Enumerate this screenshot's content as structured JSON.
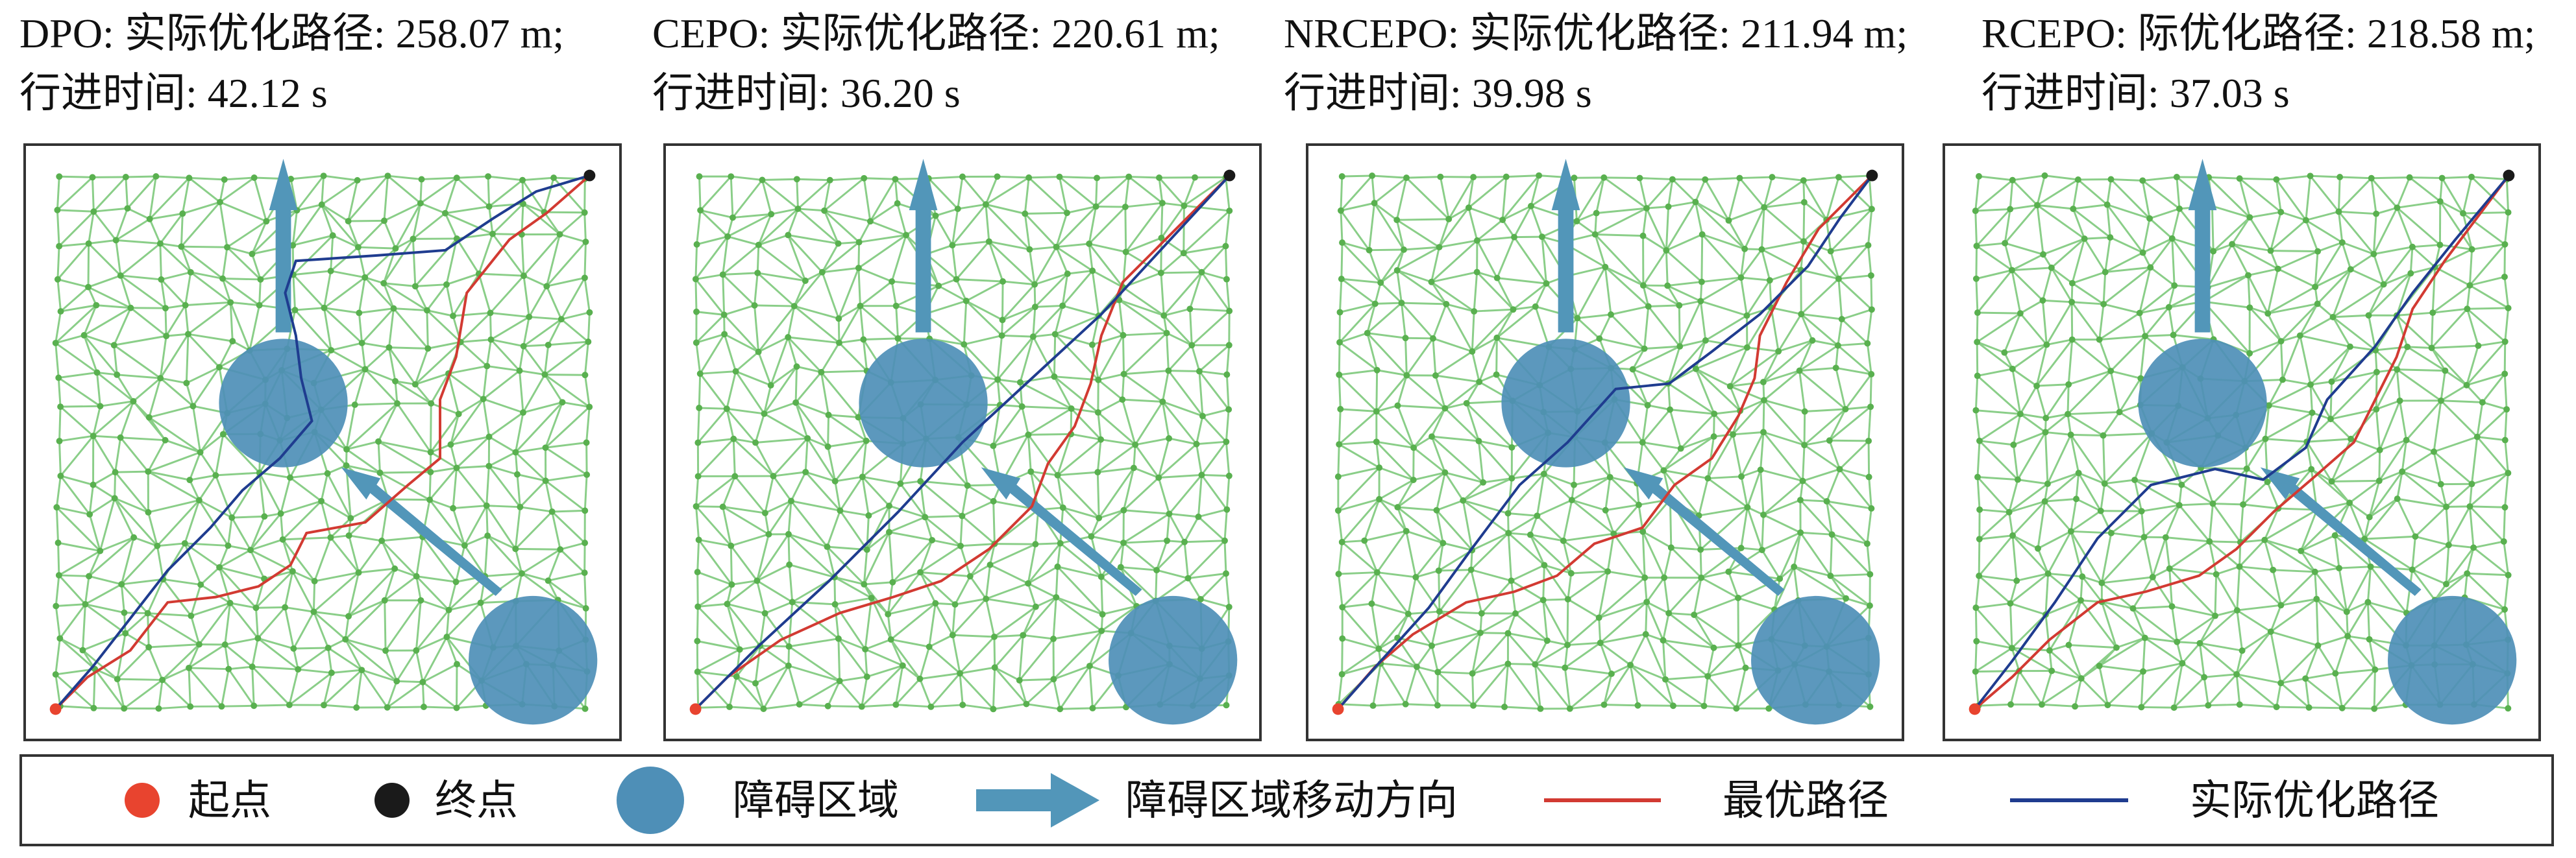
{
  "colors": {
    "mesh": "#7ec97c",
    "mesh_node": "#59b04f",
    "obstacle": "#4e8fb7",
    "arrow": "#5296b9",
    "optimal_path": "#d23a32",
    "actual_path": "#1f3c8f",
    "start": "#e8442f",
    "end": "#1a1a1a"
  },
  "panels": [
    {
      "algorithm": "DPO",
      "line1": "DPO: 实际优化路径: 258.07 m;",
      "line2": "行进时间: 42.12 s"
    },
    {
      "algorithm": "CEPO",
      "line1": "CEPO: 实际优化路径: 220.61 m;",
      "line2": "行进时间: 36.20 s"
    },
    {
      "algorithm": "NRCEPO",
      "line1": "NRCEPO: 实际优化路径: 211.94 m;",
      "line2": "行进时间: 39.98 s"
    },
    {
      "algorithm": "RCEPO",
      "line1": "RCEPO: 际优化路径: 218.58 m;",
      "line2": "行进时间: 37.03 s"
    }
  ],
  "legend": {
    "start": "起点",
    "end": "终点",
    "obstacle": "障碍区域",
    "obstacle_motion": "障碍区域移动方向",
    "optimal_path": "最优路径",
    "actual_path": "实际优化路径"
  }
}
